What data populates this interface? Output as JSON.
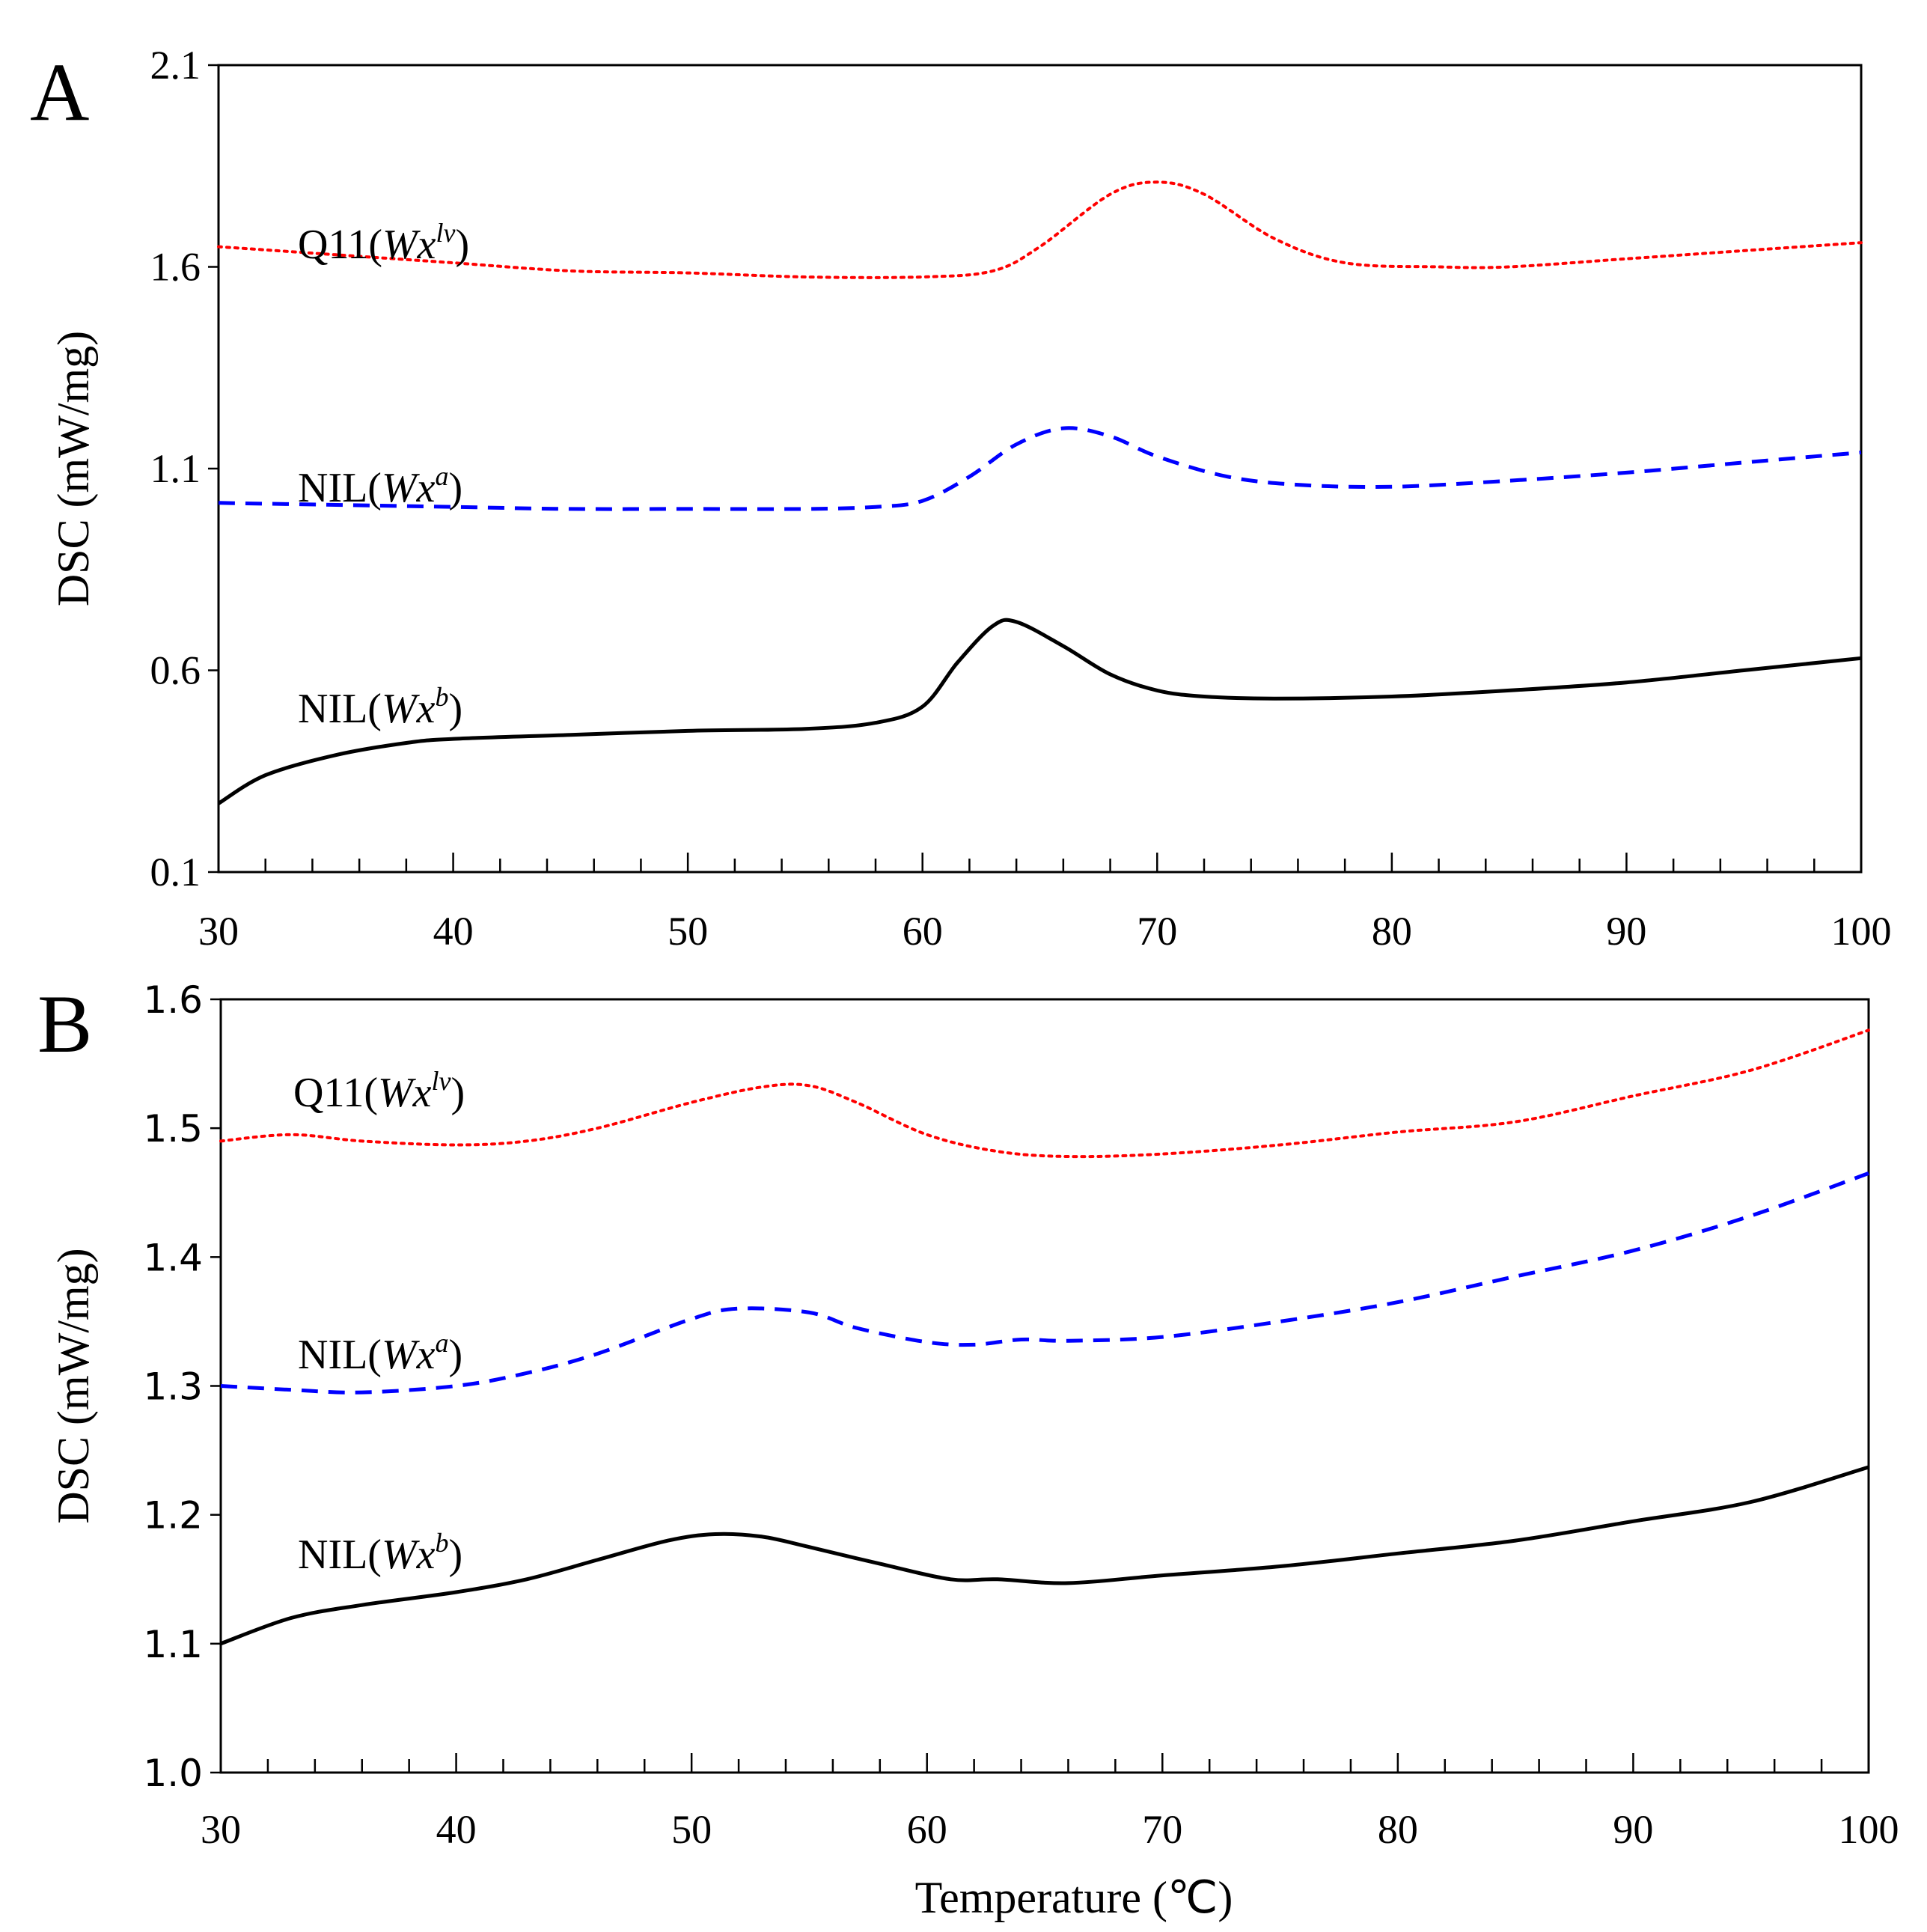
{
  "chart_data": [
    {
      "panel": "A",
      "type": "line",
      "title": "",
      "xlabel": "",
      "ylabel": "DSC (mW/mg)",
      "xlim": [
        30,
        100
      ],
      "ylim": [
        0.1,
        2.1
      ],
      "xticks": [
        "30",
        "40",
        "50",
        "60",
        "70",
        "80",
        "90",
        "100"
      ],
      "yticks": [
        "0.1",
        "0.6",
        "1.1",
        "1.6",
        "2.1"
      ],
      "grid": false,
      "series": [
        {
          "name": "Q11(Wx^lv)",
          "label_text": "Q11(",
          "label_italic": "Wx",
          "label_sup": "lv",
          "label_close": ")",
          "color": "#ff0000",
          "style": "dotted",
          "x": [
            30,
            35,
            40,
            45,
            50,
            55,
            60,
            63,
            65,
            68,
            70,
            72,
            75,
            78,
            82,
            85,
            90,
            95,
            100
          ],
          "y": [
            1.65,
            1.63,
            1.61,
            1.59,
            1.585,
            1.575,
            1.575,
            1.59,
            1.65,
            1.78,
            1.81,
            1.78,
            1.67,
            1.61,
            1.6,
            1.6,
            1.62,
            1.64,
            1.66
          ]
        },
        {
          "name": "NIL(Wx^a)",
          "label_text": "NIL(",
          "label_italic": "Wx",
          "label_sup": "a",
          "label_close": ")",
          "color": "#0000ff",
          "style": "dashed",
          "x": [
            30,
            35,
            40,
            45,
            50,
            55,
            58,
            60,
            62,
            64,
            66,
            68,
            70,
            73,
            76,
            80,
            85,
            90,
            95,
            100
          ],
          "y": [
            1.015,
            1.01,
            1.005,
            1.0,
            1.0,
            1.0,
            1.005,
            1.02,
            1.08,
            1.16,
            1.2,
            1.18,
            1.13,
            1.08,
            1.06,
            1.055,
            1.07,
            1.09,
            1.115,
            1.14
          ]
        },
        {
          "name": "NIL(Wx^b)",
          "label_text": "NIL(",
          "label_italic": "Wx",
          "label_sup": "b",
          "label_close": ")",
          "color": "#000000",
          "style": "solid",
          "x": [
            30,
            32,
            35,
            38,
            40,
            45,
            50,
            55,
            58,
            60,
            61.5,
            63,
            64,
            66,
            68,
            70,
            72,
            75,
            80,
            85,
            90,
            95,
            100
          ],
          "y": [
            0.27,
            0.34,
            0.39,
            0.42,
            0.43,
            0.44,
            0.45,
            0.455,
            0.47,
            0.51,
            0.62,
            0.71,
            0.72,
            0.66,
            0.59,
            0.55,
            0.535,
            0.53,
            0.535,
            0.55,
            0.57,
            0.6,
            0.63
          ]
        }
      ]
    },
    {
      "panel": "B",
      "type": "line",
      "title": "",
      "xlabel": "Temperature (℃)",
      "ylabel": "DSC (mW/mg)",
      "xlim": [
        30,
        100
      ],
      "ylim": [
        1.0,
        1.6
      ],
      "xticks": [
        "30",
        "40",
        "50",
        "60",
        "70",
        "80",
        "90",
        "100"
      ],
      "yticks": [
        "1.0",
        "1.1",
        "1.2",
        "1.3",
        "1.4",
        "1.5",
        "1.6"
      ],
      "grid": false,
      "series": [
        {
          "name": "Q11(Wx^lv)",
          "label_text": "Q11(",
          "label_italic": "Wx",
          "label_sup": "lv",
          "label_close": ")",
          "color": "#ff0000",
          "style": "dotted",
          "x": [
            30,
            33,
            36,
            40,
            43,
            46,
            50,
            53,
            55,
            57,
            60,
            63,
            66,
            70,
            75,
            80,
            85,
            90,
            95,
            100
          ],
          "y": [
            1.49,
            1.495,
            1.49,
            1.487,
            1.49,
            1.5,
            1.52,
            1.532,
            1.533,
            1.52,
            1.495,
            1.482,
            1.478,
            1.48,
            1.487,
            1.497,
            1.505,
            1.525,
            1.545,
            1.576
          ]
        },
        {
          "name": "NIL(Wx^a)",
          "label_text": "NIL(",
          "label_italic": "Wx",
          "label_sup": "a",
          "label_close": ")",
          "color": "#0000ff",
          "style": "dashed",
          "x": [
            30,
            33,
            36,
            40,
            43,
            46,
            50,
            52,
            55,
            57,
            60,
            62,
            64,
            66,
            70,
            75,
            80,
            85,
            90,
            95,
            100
          ],
          "y": [
            1.3,
            1.297,
            1.295,
            1.3,
            1.31,
            1.325,
            1.352,
            1.36,
            1.357,
            1.345,
            1.334,
            1.332,
            1.336,
            1.335,
            1.338,
            1.35,
            1.365,
            1.385,
            1.405,
            1.432,
            1.465
          ]
        },
        {
          "name": "NIL(Wx^b)",
          "label_text": "NIL(",
          "label_italic": "Wx",
          "label_sup": "b",
          "label_close": ")",
          "color": "#000000",
          "style": "solid",
          "x": [
            30,
            33,
            36,
            40,
            43,
            46,
            49,
            51,
            53,
            55,
            58,
            61,
            63,
            66,
            70,
            75,
            80,
            85,
            90,
            95,
            100
          ],
          "y": [
            1.1,
            1.12,
            1.13,
            1.14,
            1.15,
            1.165,
            1.18,
            1.185,
            1.183,
            1.175,
            1.162,
            1.15,
            1.15,
            1.147,
            1.153,
            1.16,
            1.17,
            1.18,
            1.195,
            1.21,
            1.237
          ]
        }
      ]
    }
  ]
}
